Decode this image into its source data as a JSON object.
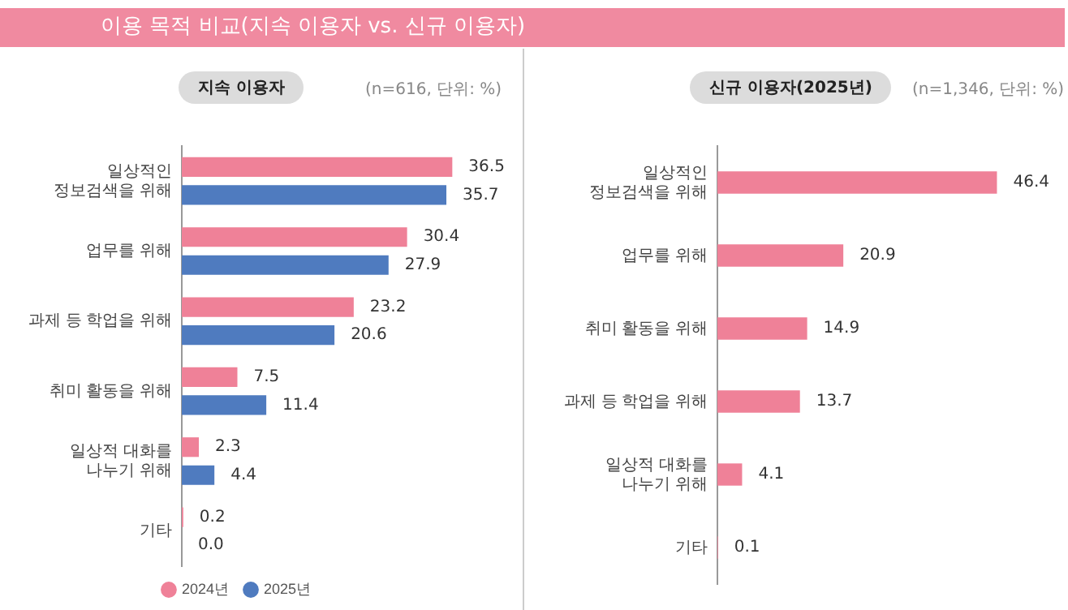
{
  "chart_data": [
    {
      "type": "bar",
      "orientation": "horizontal",
      "title": "지속 이용자",
      "subtitle": "(n=616, 단위: %)",
      "annotations": [
        "이용 목적 비교(지속 이용자 vs. 신규 이용자)"
      ],
      "tick_labels": "y",
      "legend": "bottom",
      "categories": [
        "일상적인\n정보검색을 위해",
        "업무를 위해",
        "과제 등 학업을 위해",
        "취미 활동을 위해",
        "일상적 대화를\n나누기 위해",
        "기타"
      ],
      "series": [
        {
          "name": "2024년",
          "color": "#ef8198",
          "values": [
            36.5,
            30.4,
            23.2,
            7.5,
            2.3,
            0.2
          ],
          "value_labels": [
            "36.5",
            "30.4",
            "23.2",
            "7.5",
            "2.3",
            "0.2"
          ]
        },
        {
          "name": "2025년",
          "color": "#4f7bbf",
          "values": [
            35.7,
            27.9,
            20.6,
            11.4,
            4.4,
            0.0
          ],
          "value_labels": [
            "35.7",
            "27.9",
            "20.6",
            "11.4",
            "4.4",
            "0.0"
          ]
        }
      ]
    },
    {
      "type": "bar",
      "orientation": "horizontal",
      "title": "신규 이용자(2025년)",
      "subtitle": "(n=1,346, 단위: %)",
      "tick_labels": "y",
      "categories": [
        "일상적인\n정보검색을 위해",
        "업무를 위해",
        "취미 활동을 위해",
        "과제 등 학업을 위해",
        "일상적 대화를\n나누기 위해",
        "기타"
      ],
      "series": [
        {
          "color": "#ef8198",
          "values": [
            46.4,
            20.9,
            14.9,
            13.7,
            4.1,
            0.1
          ],
          "value_labels": [
            "46.4",
            "20.9",
            "14.9",
            "13.7",
            "4.1",
            "0.1"
          ]
        }
      ]
    }
  ]
}
